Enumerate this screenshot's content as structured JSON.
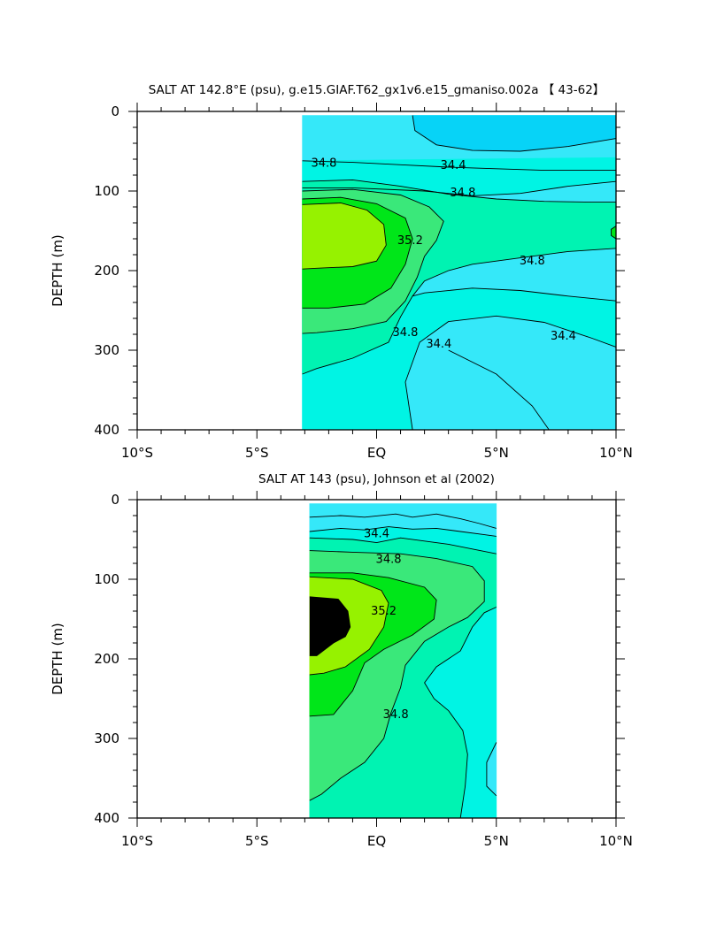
{
  "chart_data": [
    {
      "type": "filled-contour",
      "title": "SALT AT 142.8°E (psu), g.e15.GIAF.T62_gx1v6.e15_gmaniso.002a 【 43-62】",
      "xlabel": "",
      "ylabel": "DEPTH (m)",
      "xlim": [
        -10,
        10
      ],
      "ylim": [
        400,
        0
      ],
      "x_ticks": [
        {
          "v": -10,
          "label": "10°S"
        },
        {
          "v": -5,
          "label": "5°S"
        },
        {
          "v": 0,
          "label": "EQ"
        },
        {
          "v": 5,
          "label": "5°N"
        },
        {
          "v": 10,
          "label": "10°N"
        }
      ],
      "y_ticks": [
        {
          "v": 0,
          "label": "0"
        },
        {
          "v": 100,
          "label": "100"
        },
        {
          "v": 200,
          "label": "200"
        },
        {
          "v": 300,
          "label": "300"
        },
        {
          "v": 400,
          "label": "400"
        }
      ],
      "data_extent": {
        "lat": [
          -3.1,
          10
        ],
        "depth": [
          5,
          400
        ]
      },
      "contour_levels": [
        34.2,
        34.4,
        34.6,
        34.8,
        35.0,
        35.2,
        35.4
      ],
      "fill_colors": [
        "#07d3f7",
        "#35e8f9",
        "#00f4e4",
        "#00f3b2",
        "#3ae87a",
        "#00e619",
        "#96f200"
      ],
      "labeled_contours": [
        {
          "text": "34.8",
          "lat": -2.2,
          "depth": 65
        },
        {
          "text": "34.4",
          "lat": 3.2,
          "depth": 68
        },
        {
          "text": "34.8",
          "lat": 3.6,
          "depth": 102
        },
        {
          "text": "35.2",
          "lat": 1.4,
          "depth": 162
        },
        {
          "text": "34.8",
          "lat": 6.5,
          "depth": 188
        },
        {
          "text": "34.8",
          "lat": 1.2,
          "depth": 278
        },
        {
          "text": "34.4",
          "lat": 7.8,
          "depth": 282
        },
        {
          "text": "34.4",
          "lat": 2.6,
          "depth": 292
        }
      ]
    },
    {
      "type": "filled-contour",
      "title": "SALT AT 143 (psu), Johnson et al (2002)",
      "xlabel": "",
      "ylabel": "DEPTH (m)",
      "xlim": [
        -10,
        10
      ],
      "ylim": [
        400,
        0
      ],
      "x_ticks": [
        {
          "v": -10,
          "label": "10°S"
        },
        {
          "v": -5,
          "label": "5°S"
        },
        {
          "v": 0,
          "label": "EQ"
        },
        {
          "v": 5,
          "label": "5°N"
        },
        {
          "v": 10,
          "label": "10°N"
        }
      ],
      "y_ticks": [
        {
          "v": 0,
          "label": "0"
        },
        {
          "v": 100,
          "label": "100"
        },
        {
          "v": 200,
          "label": "200"
        },
        {
          "v": 300,
          "label": "300"
        },
        {
          "v": 400,
          "label": "400"
        }
      ],
      "data_extent": {
        "lat": [
          -2.8,
          5
        ],
        "depth": [
          5,
          400
        ]
      },
      "contour_levels": [
        34.4,
        34.6,
        34.8,
        35.0,
        35.2,
        35.4
      ],
      "fill_colors": [
        "#35e8f9",
        "#00f4e4",
        "#00f3b2",
        "#3ae87a",
        "#00e619",
        "#96f200"
      ],
      "labeled_contours": [
        {
          "text": "34.4",
          "lat": 0,
          "depth": 43
        },
        {
          "text": "34.8",
          "lat": 0.5,
          "depth": 75
        },
        {
          "text": "35.2",
          "lat": 0.3,
          "depth": 140
        },
        {
          "text": "34.8",
          "lat": 0.8,
          "depth": 270
        }
      ]
    }
  ]
}
